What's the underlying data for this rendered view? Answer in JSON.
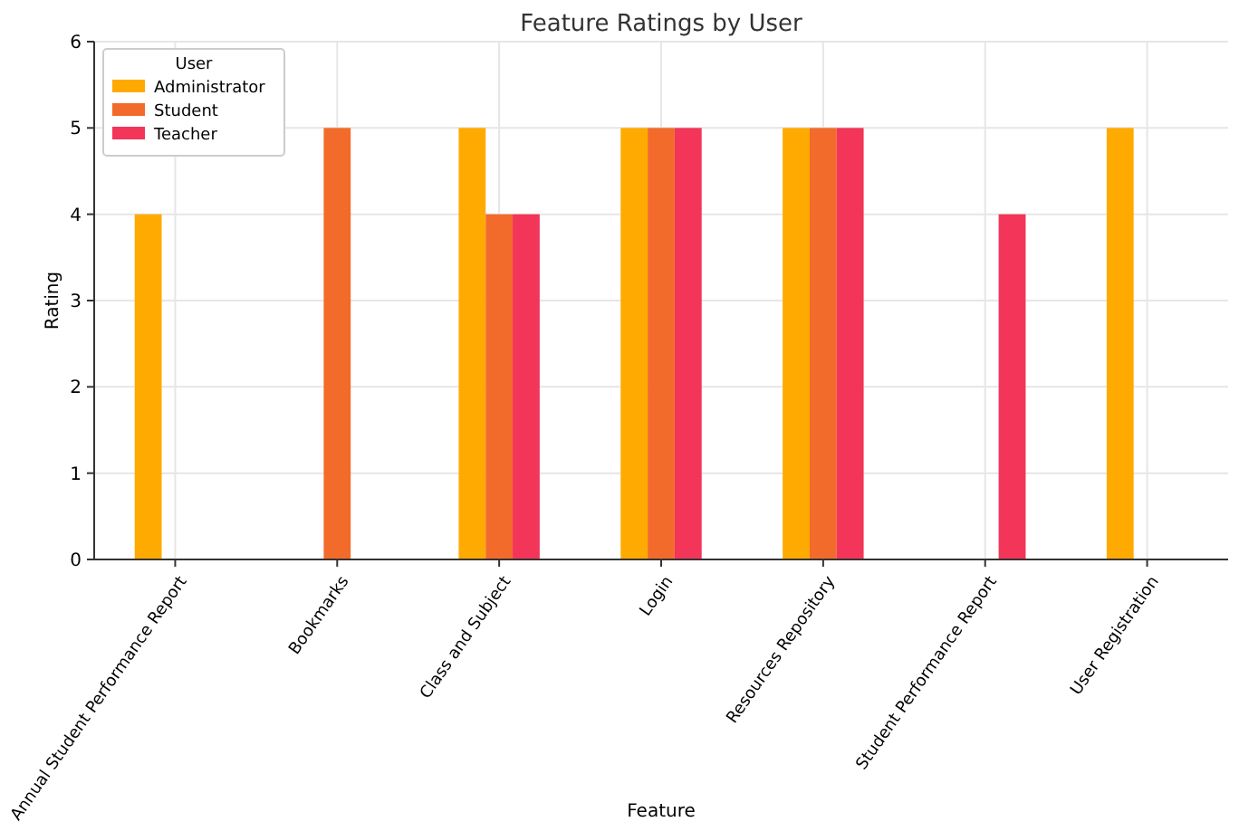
{
  "chart_data": {
    "type": "bar",
    "title": "Feature Ratings by User",
    "xlabel": "Feature",
    "ylabel": "Rating",
    "legend_title": "User",
    "categories": [
      "Annual Student Performance Report",
      "Bookmarks",
      "Class and Subject",
      "Login",
      "Resources Repository",
      "Student Performance Report",
      "User Registration"
    ],
    "series": [
      {
        "name": "Administrator",
        "color": "#ffaa00",
        "values": [
          4,
          null,
          5,
          5,
          5,
          null,
          5
        ]
      },
      {
        "name": "Student",
        "color": "#f26b2a",
        "values": [
          null,
          5,
          4,
          5,
          5,
          null,
          null
        ]
      },
      {
        "name": "Teacher",
        "color": "#f23558",
        "values": [
          null,
          null,
          4,
          5,
          5,
          4,
          null
        ]
      }
    ],
    "ylim": [
      0,
      6
    ],
    "yticks": [
      0,
      1,
      2,
      3,
      4,
      5,
      6
    ],
    "grid": true,
    "legend": "top left"
  }
}
